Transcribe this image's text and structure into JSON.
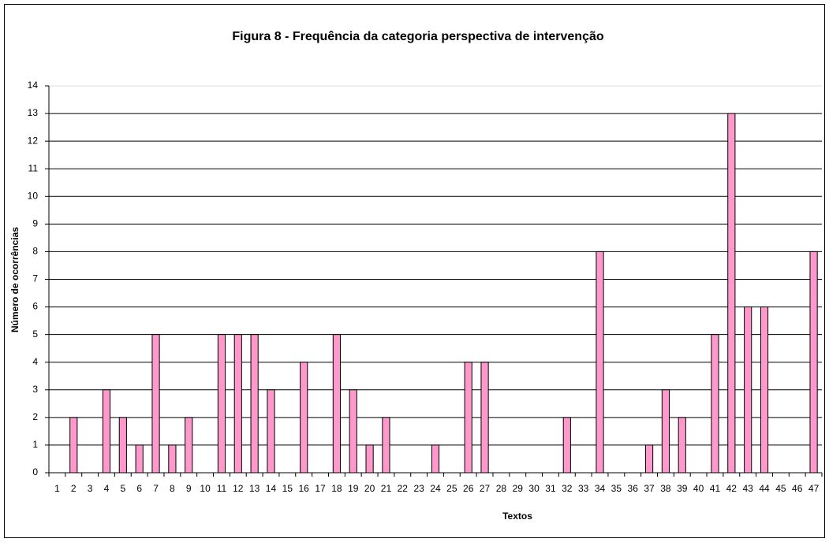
{
  "chart_data": {
    "type": "bar",
    "title": "Figura 8 - Frequência da categoria perspectiva de intervenção",
    "x_label": "Textos",
    "y_label": "Número de ocorrências",
    "categories": [
      "1",
      "2",
      "3",
      "4",
      "5",
      "6",
      "7",
      "8",
      "9",
      "10",
      "11",
      "12",
      "13",
      "14",
      "15",
      "16",
      "17",
      "18",
      "19",
      "20",
      "21",
      "22",
      "23",
      "24",
      "25",
      "26",
      "27",
      "28",
      "29",
      "30",
      "31",
      "32",
      "33",
      "34",
      "35",
      "36",
      "37",
      "38",
      "39",
      "40",
      "41",
      "42",
      "43",
      "44",
      "45",
      "46",
      "47"
    ],
    "values": [
      0,
      2,
      0,
      3,
      2,
      1,
      5,
      1,
      2,
      0,
      5,
      5,
      5,
      3,
      0,
      4,
      0,
      5,
      3,
      1,
      2,
      0,
      0,
      1,
      0,
      4,
      4,
      0,
      0,
      0,
      0,
      2,
      0,
      8,
      0,
      0,
      1,
      3,
      2,
      0,
      5,
      13,
      6,
      6,
      0,
      0,
      8
    ],
    "color": "#ff99cc",
    "ylim": [
      0,
      14
    ],
    "yticks": [
      0,
      1,
      2,
      3,
      4,
      5,
      6,
      7,
      8,
      9,
      10,
      11,
      12,
      13,
      14
    ],
    "grid": true
  }
}
